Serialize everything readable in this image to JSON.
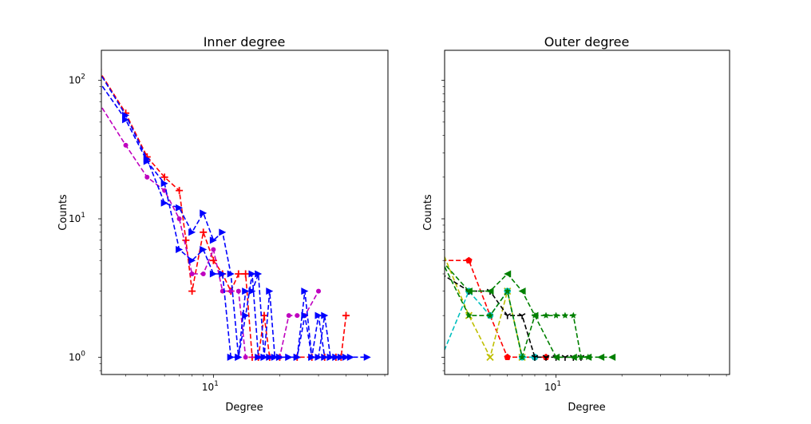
{
  "chart_data": [
    {
      "type": "line",
      "title": "Inner degree",
      "xlabel": "Degree",
      "ylabel": "Counts",
      "xscale": "log",
      "yscale": "log",
      "xlim": [
        3.1,
        62
      ],
      "ylim": [
        0.75,
        165
      ],
      "xticks": [
        {
          "value": 10,
          "base": "10",
          "exp": "1"
        }
      ],
      "yticks": [
        {
          "value": 1,
          "base": "10",
          "exp": "0"
        },
        {
          "value": 10,
          "base": "10",
          "exp": "1"
        },
        {
          "value": 100,
          "base": "10",
          "exp": "2"
        }
      ],
      "series": [
        {
          "color": "#ff0000",
          "marker": "plus",
          "x": [
            3,
            4,
            5,
            6,
            7,
            7.5,
            8,
            9,
            10,
            11,
            12,
            13,
            14,
            15,
            16,
            17,
            18,
            20,
            24,
            28,
            32,
            36,
            38,
            40
          ],
          "y": [
            120,
            58,
            28,
            20,
            16,
            7,
            3,
            8,
            5,
            4,
            3,
            4,
            4,
            1,
            1,
            2,
            1,
            1,
            1,
            1,
            1,
            1,
            1,
            2
          ]
        },
        {
          "color": "#bf00bf",
          "marker": "circle",
          "x": [
            3,
            4,
            5,
            6,
            7,
            8,
            9,
            10,
            11,
            12,
            13,
            14,
            16,
            18,
            20,
            22,
            24,
            26,
            30
          ],
          "y": [
            70,
            34,
            20,
            16,
            10,
            4,
            4,
            6,
            3,
            3,
            3,
            1,
            1,
            1,
            1,
            2,
            2,
            2,
            3
          ]
        },
        {
          "color": "#0000ff",
          "marker": "triangle-right",
          "x": [
            3,
            4,
            5,
            6,
            7,
            8,
            9,
            10,
            11,
            12,
            13,
            14,
            15,
            16,
            17,
            18,
            19,
            20,
            22,
            24,
            26,
            28,
            30,
            32,
            34,
            36,
            40
          ],
          "y": [
            118,
            56,
            27,
            13,
            12,
            8,
            11,
            7,
            8,
            4,
            1,
            3,
            3,
            4,
            1,
            3,
            1,
            1,
            1,
            1,
            3,
            1,
            2,
            1,
            1,
            1,
            1
          ]
        },
        {
          "color": "#0000ff",
          "marker": "triangle-right",
          "x": [
            3,
            4,
            5,
            6,
            7,
            8,
            9,
            10,
            11,
            12,
            13,
            14,
            15,
            16,
            17,
            18,
            20,
            22,
            24,
            26,
            28,
            30,
            32,
            34,
            36,
            38,
            42,
            50
          ],
          "y": [
            100,
            52,
            26,
            18,
            6,
            5,
            6,
            4,
            4,
            1,
            1,
            2,
            4,
            1,
            1,
            1,
            1,
            1,
            1,
            2,
            1,
            1,
            2,
            1,
            1,
            1,
            1,
            1
          ]
        }
      ]
    },
    {
      "type": "line",
      "title": "Outer degree",
      "xlabel": "Degree",
      "ylabel": "Counts",
      "xscale": "log",
      "yscale": "log",
      "xlim": [
        3.1,
        62
      ],
      "ylim": [
        0.75,
        165
      ],
      "xticks": [
        {
          "value": 10,
          "base": "10",
          "exp": "1"
        }
      ],
      "yticks": [],
      "series": [
        {
          "color": "#ff0000",
          "marker": "pentagon",
          "x": [
            3,
            4,
            5,
            6,
            7,
            8,
            9
          ],
          "y": [
            5,
            5,
            2,
            1,
            1,
            1,
            1
          ]
        },
        {
          "color": "#bfbf00",
          "marker": "x",
          "x": [
            3,
            4,
            5,
            6,
            7
          ],
          "y": [
            6,
            2,
            1,
            3,
            1
          ]
        },
        {
          "color": "#00bfbf",
          "marker": "circle",
          "x": [
            3,
            4,
            5,
            6,
            7,
            8
          ],
          "y": [
            1,
            3,
            2,
            3,
            1,
            1
          ]
        },
        {
          "color": "#000000",
          "marker": "tri-down",
          "x": [
            3,
            4,
            5,
            6,
            7,
            8,
            9,
            10,
            11,
            12,
            13
          ],
          "y": [
            4,
            3,
            3,
            2,
            2,
            1,
            1,
            1,
            1,
            1,
            1
          ]
        },
        {
          "color": "#008000",
          "marker": "star",
          "x": [
            3,
            4,
            5,
            6,
            7,
            8,
            9,
            10,
            11,
            12,
            13,
            14
          ],
          "y": [
            5,
            2,
            2,
            3,
            1,
            2,
            2,
            2,
            2,
            2,
            1,
            1
          ]
        },
        {
          "color": "#008000",
          "marker": "triangle-left",
          "x": [
            3,
            4,
            5,
            6,
            7,
            8,
            10,
            12,
            14,
            16,
            18
          ],
          "y": [
            5,
            3,
            3,
            4,
            3,
            2,
            1,
            1,
            1,
            1,
            1
          ]
        }
      ]
    }
  ]
}
